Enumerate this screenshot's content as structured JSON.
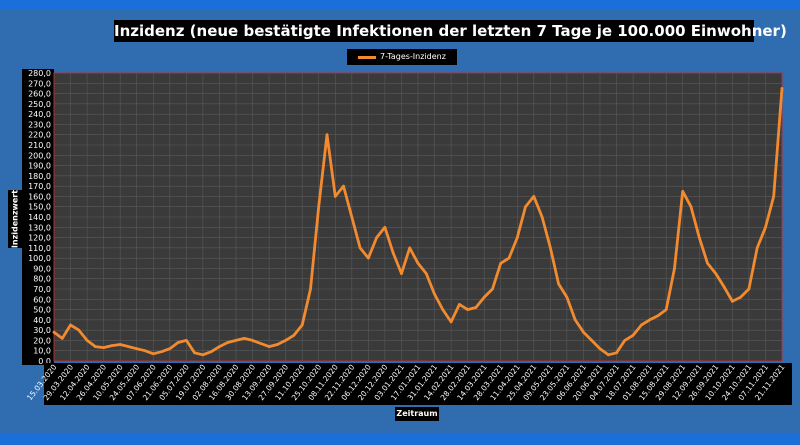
{
  "colors": {
    "background": "#2f6db0",
    "accent_bar": "#1a6fd8",
    "plot_bg": "#3a3a3a",
    "grid": "#5a5a5a",
    "line": "#f28a30",
    "plot_border": "#b03030"
  },
  "chart_data": {
    "type": "line",
    "title": "Inzidenz (neue bestätigte Infektionen der letzten 7 Tage je 100.000 Einwohner)",
    "xlabel": "Zeitraum",
    "ylabel": "Inzidenzwert",
    "ylim": [
      0,
      280
    ],
    "ytick_step": 10,
    "grid": true,
    "legend_position": "top-center",
    "x_ticks": [
      "15.03.2020",
      "29.03.2020",
      "12.04.2020",
      "26.04.2020",
      "10.05.2020",
      "24.05.2020",
      "07.06.2020",
      "21.06.2020",
      "05.07.2020",
      "19.07.2020",
      "02.08.2020",
      "16.08.2020",
      "30.08.2020",
      "13.09.2020",
      "27.09.2020",
      "11.10.2020",
      "25.10.2020",
      "08.11.2020",
      "22.11.2020",
      "06.12.2020",
      "20.12.2020",
      "03.01.2021",
      "17.01.2021",
      "31.01.2021",
      "14.02.2021",
      "28.02.2021",
      "14.03.2021",
      "28.03.2021",
      "11.04.2021",
      "25.04.2021",
      "09.05.2021",
      "23.05.2021",
      "06.06.2021",
      "20.06.2021",
      "04.07.2021",
      "18.07.2021",
      "01.08.2021",
      "15.08.2021",
      "29.08.2021",
      "12.09.2021",
      "26.09.2021",
      "10.10.2021",
      "24.10.2021",
      "07.11.2021",
      "21.11.2021"
    ],
    "series": [
      {
        "name": "7-Tages-Inzidenz",
        "x": [
          "15.03.2020",
          "22.03.2020",
          "29.03.2020",
          "05.04.2020",
          "12.04.2020",
          "19.04.2020",
          "26.04.2020",
          "03.05.2020",
          "10.05.2020",
          "17.05.2020",
          "24.05.2020",
          "31.05.2020",
          "07.06.2020",
          "14.06.2020",
          "21.06.2020",
          "28.06.2020",
          "05.07.2020",
          "12.07.2020",
          "19.07.2020",
          "26.07.2020",
          "02.08.2020",
          "09.08.2020",
          "16.08.2020",
          "23.08.2020",
          "30.08.2020",
          "06.09.2020",
          "13.09.2020",
          "20.09.2020",
          "27.09.2020",
          "04.10.2020",
          "11.10.2020",
          "18.10.2020",
          "25.10.2020",
          "01.11.2020",
          "08.11.2020",
          "15.11.2020",
          "22.11.2020",
          "29.11.2020",
          "06.12.2020",
          "13.12.2020",
          "20.12.2020",
          "27.12.2020",
          "03.01.2021",
          "10.01.2021",
          "17.01.2021",
          "24.01.2021",
          "31.01.2021",
          "07.02.2021",
          "14.02.2021",
          "21.02.2021",
          "28.02.2021",
          "07.03.2021",
          "14.03.2021",
          "21.03.2021",
          "28.03.2021",
          "04.04.2021",
          "11.04.2021",
          "18.04.2021",
          "25.04.2021",
          "02.05.2021",
          "09.05.2021",
          "16.05.2021",
          "23.05.2021",
          "30.05.2021",
          "06.06.2021",
          "13.06.2021",
          "20.06.2021",
          "27.06.2021",
          "04.07.2021",
          "11.07.2021",
          "18.07.2021",
          "25.07.2021",
          "01.08.2021",
          "08.08.2021",
          "15.08.2021",
          "22.08.2021",
          "29.08.2021",
          "05.09.2021",
          "12.09.2021",
          "19.09.2021",
          "26.09.2021",
          "03.10.2021",
          "10.10.2021",
          "17.10.2021",
          "24.10.2021",
          "31.10.2021",
          "07.11.2021",
          "14.11.2021",
          "21.11.2021"
        ],
        "values": [
          28,
          22,
          35,
          30,
          20,
          14,
          13,
          15,
          16,
          14,
          12,
          10,
          7,
          9,
          12,
          18,
          20,
          8,
          6,
          9,
          14,
          18,
          20,
          22,
          20,
          17,
          14,
          16,
          20,
          25,
          35,
          70,
          150,
          220,
          160,
          170,
          140,
          110,
          100,
          120,
          130,
          105,
          85,
          110,
          95,
          85,
          65,
          50,
          38,
          55,
          50,
          52,
          62,
          70,
          95,
          100,
          120,
          150,
          160,
          140,
          110,
          75,
          62,
          40,
          28,
          20,
          12,
          6,
          8,
          20,
          25,
          35,
          40,
          44,
          50,
          90,
          165,
          150,
          120,
          95,
          85,
          72,
          58,
          62,
          70,
          110,
          130,
          160,
          265
        ]
      }
    ]
  }
}
